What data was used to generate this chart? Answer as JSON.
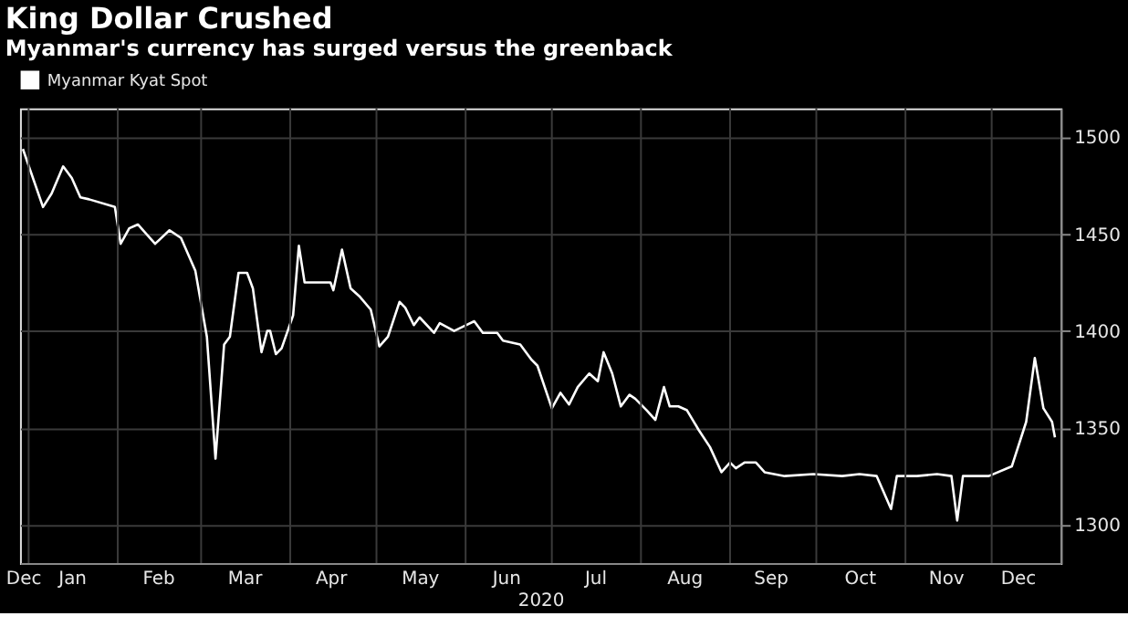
{
  "chart_data": {
    "type": "line",
    "title": "King Dollar Crushed",
    "subtitle": "Myanmar's currency has surged versus the greenback",
    "xlabel": "2020",
    "x": [
      "2019-12-30",
      "2020-01-06",
      "2020-01-09",
      "2020-01-13",
      "2020-01-16",
      "2020-01-19",
      "2020-01-22",
      "2020-01-31",
      "2020-02-02",
      "2020-02-05",
      "2020-02-08",
      "2020-02-14",
      "2020-02-19",
      "2020-02-23",
      "2020-02-28",
      "2020-03-03",
      "2020-03-06",
      "2020-03-09",
      "2020-03-11",
      "2020-03-14",
      "2020-03-17",
      "2020-03-19",
      "2020-03-22",
      "2020-03-24",
      "2020-03-25",
      "2020-03-27",
      "2020-03-29",
      "2020-04-02",
      "2020-04-04",
      "2020-04-06",
      "2020-04-15",
      "2020-04-16",
      "2020-04-19",
      "2020-04-22",
      "2020-04-25",
      "2020-04-29",
      "2020-05-02",
      "2020-05-05",
      "2020-05-09",
      "2020-05-11",
      "2020-05-14",
      "2020-05-16",
      "2020-05-21",
      "2020-05-23",
      "2020-05-28",
      "2020-06-04",
      "2020-06-07",
      "2020-06-12",
      "2020-06-14",
      "2020-06-20",
      "2020-06-24",
      "2020-06-26",
      "2020-07-01",
      "2020-07-04",
      "2020-07-07",
      "2020-07-10",
      "2020-07-14",
      "2020-07-17",
      "2020-07-19",
      "2020-07-22",
      "2020-07-25",
      "2020-07-28",
      "2020-07-30",
      "2020-08-03",
      "2020-08-06",
      "2020-08-09",
      "2020-08-11",
      "2020-08-14",
      "2020-08-17",
      "2020-08-21",
      "2020-08-25",
      "2020-08-29",
      "2020-09-01",
      "2020-09-03",
      "2020-09-06",
      "2020-09-10",
      "2020-09-13",
      "2020-09-20",
      "2020-09-30",
      "2020-10-10",
      "2020-10-16",
      "2020-10-22",
      "2020-10-27",
      "2020-10-29",
      "2020-11-05",
      "2020-11-12",
      "2020-11-17",
      "2020-11-19",
      "2020-11-21",
      "2020-11-30",
      "2020-12-08",
      "2020-12-13",
      "2020-12-16",
      "2020-12-19",
      "2020-12-22",
      "2020-12-23"
    ],
    "series": [
      {
        "name": "Myanmar Kyat Spot",
        "color": "#ffffff",
        "values": [
          1494,
          1464,
          1471,
          1485,
          1479,
          1469,
          1468,
          1464,
          1445,
          1453,
          1455,
          1445,
          1452,
          1448,
          1431,
          1397,
          1334,
          1393,
          1397,
          1430,
          1430,
          1422,
          1389,
          1400,
          1400,
          1388,
          1391,
          1408,
          1444,
          1425,
          1425,
          1421,
          1442,
          1422,
          1418,
          1411,
          1392,
          1397,
          1415,
          1412,
          1403,
          1407,
          1399,
          1404,
          1400,
          1405,
          1399,
          1399,
          1395,
          1393,
          1385,
          1382,
          1360,
          1368,
          1362,
          1371,
          1378,
          1374,
          1389,
          1378,
          1361,
          1367,
          1365,
          1359,
          1354,
          1371,
          1361,
          1361,
          1359,
          1349,
          1340,
          1327,
          1332,
          1329,
          1332,
          1332,
          1327,
          1325,
          1326,
          1325,
          1326,
          1325,
          1308,
          1325,
          1325,
          1326,
          1325,
          1302,
          1325,
          1325,
          1330,
          1353,
          1386,
          1360,
          1353,
          1345
        ]
      }
    ],
    "xlim": [
      "2019-12-29",
      "2020-12-25"
    ],
    "xticks": [
      {
        "value": "2019-12-30",
        "label": "Dec"
      },
      {
        "value": "2020-01-01",
        "label": null
      },
      {
        "value": "2020-01-16",
        "label": "Jan"
      },
      {
        "value": "2020-02-01",
        "label": null
      },
      {
        "value": "2020-02-15",
        "label": "Feb"
      },
      {
        "value": "2020-03-01",
        "label": null
      },
      {
        "value": "2020-03-16",
        "label": "Mar"
      },
      {
        "value": "2020-04-01",
        "label": null
      },
      {
        "value": "2020-04-15",
        "label": "Apr"
      },
      {
        "value": "2020-05-01",
        "label": null
      },
      {
        "value": "2020-05-16",
        "label": "May"
      },
      {
        "value": "2020-06-01",
        "label": null
      },
      {
        "value": "2020-06-15",
        "label": "Jun"
      },
      {
        "value": "2020-07-01",
        "label": null
      },
      {
        "value": "2020-07-16",
        "label": "Jul"
      },
      {
        "value": "2020-08-01",
        "label": null
      },
      {
        "value": "2020-08-16",
        "label": "Aug"
      },
      {
        "value": "2020-09-01",
        "label": null
      },
      {
        "value": "2020-09-15",
        "label": "Sep"
      },
      {
        "value": "2020-10-01",
        "label": null
      },
      {
        "value": "2020-10-16",
        "label": "Oct"
      },
      {
        "value": "2020-11-01",
        "label": null
      },
      {
        "value": "2020-11-15",
        "label": "Nov"
      },
      {
        "value": "2020-12-01",
        "label": null
      },
      {
        "value": "2020-12-10",
        "label": "Dec"
      }
    ],
    "ylim": [
      1280,
      1515
    ],
    "yticks": [
      1300,
      1350,
      1400,
      1450,
      1500
    ],
    "grid": true,
    "legend": "top left",
    "line_style": "solid"
  }
}
